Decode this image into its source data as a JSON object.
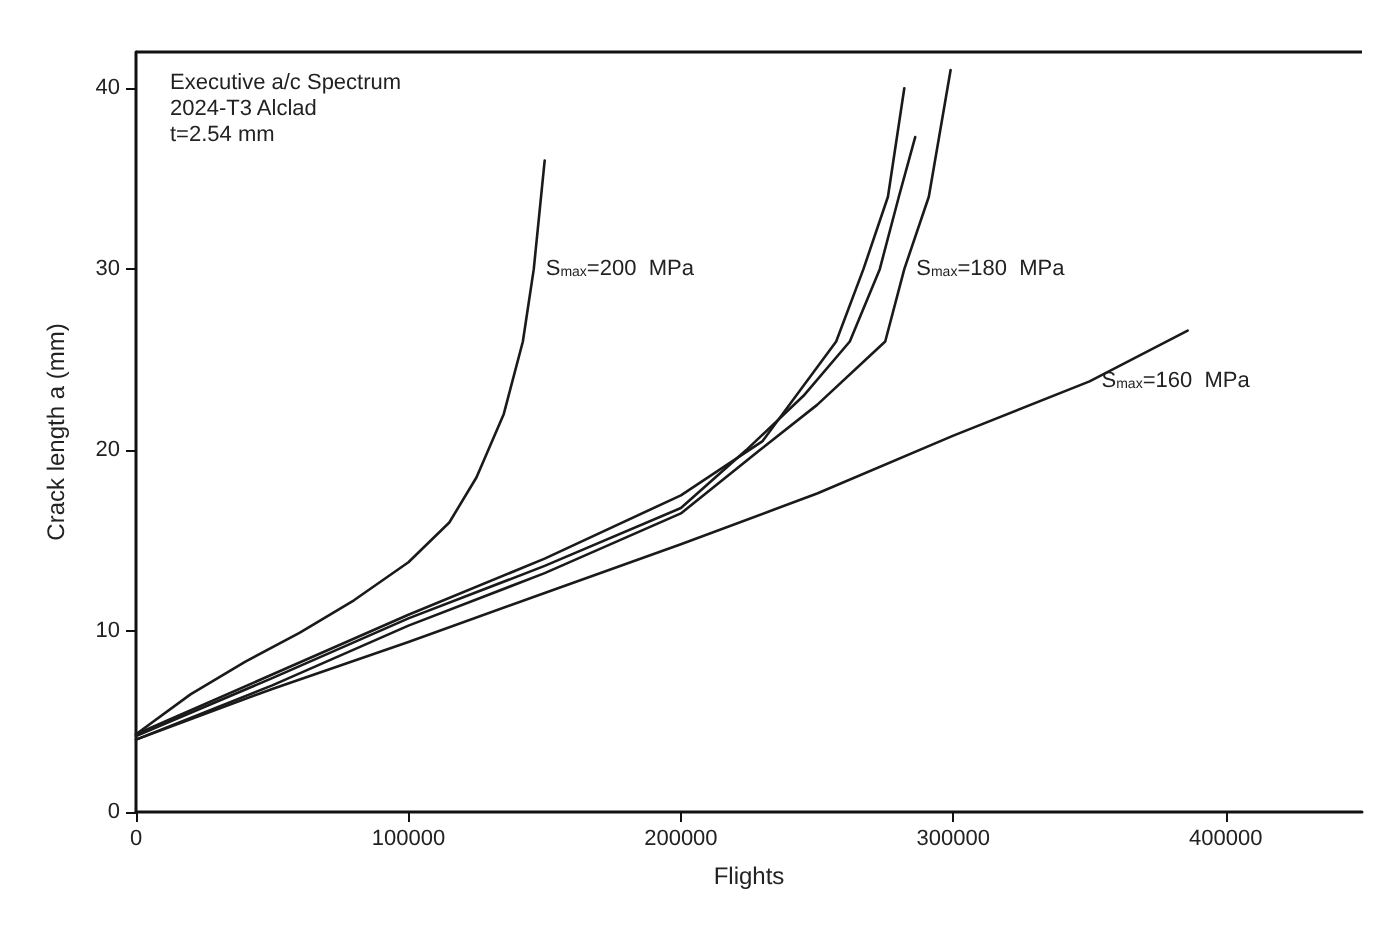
{
  "chart_data": {
    "type": "line",
    "title": "Executive a/c Spectrum\n2024-T3 Alclad\nt=2.54 mm",
    "xlabel": "Flights",
    "ylabel": "Crack length a (mm)",
    "xlim": [
      0,
      450000
    ],
    "xticks": [
      0,
      100000,
      200000,
      300000,
      400000
    ],
    "ylim": [
      0,
      42
    ],
    "yticks": [
      0,
      10,
      20,
      30,
      40
    ],
    "grid": false,
    "marker": "none",
    "line_style": "solid",
    "series": [
      {
        "name": "S$_{max}$=200  MPa",
        "color": "#1a1a1a",
        "x": [
          0,
          20000,
          40000,
          60000,
          80000,
          100000,
          115000,
          125000,
          135000,
          142000,
          146000,
          148000,
          150000
        ],
        "values": [
          4.3,
          6.5,
          8.3,
          9.9,
          11.7,
          13.8,
          16,
          18.5,
          22,
          26,
          30,
          33,
          36
        ]
      },
      {
        "color": "#1a1a1a",
        "x": [
          0,
          50000,
          100000,
          150000,
          200000,
          230000,
          257000,
          267000,
          276000,
          282000
        ],
        "values": [
          4.3,
          7.6,
          10.9,
          14,
          17.5,
          20.5,
          26,
          30,
          34,
          40
        ]
      },
      {
        "color": "#1a1a1a",
        "x": [
          0,
          50000,
          100000,
          150000,
          200000,
          224000,
          245000,
          262000,
          273000,
          280000,
          286000
        ],
        "values": [
          4.2,
          7.4,
          10.7,
          13.6,
          16.8,
          20,
          23,
          26,
          30,
          34,
          37.3
        ]
      },
      {
        "name": "S$_{max}$=180  MPa",
        "color": "#1a1a1a",
        "x": [
          0,
          50000,
          100000,
          150000,
          200000,
          229000,
          250000,
          275000,
          282000,
          291000,
          299000
        ],
        "values": [
          4,
          7,
          10.3,
          13.2,
          16.5,
          20,
          22.5,
          26,
          30,
          34,
          41
        ]
      },
      {
        "name": "S$_{max}$=160  MPa",
        "color": "#1a1a1a",
        "x": [
          0,
          50000,
          100000,
          150000,
          200000,
          250000,
          300000,
          350000,
          386000
        ],
        "values": [
          4,
          6.8,
          9.4,
          12.1,
          14.8,
          17.6,
          20.8,
          23.8,
          26.6
        ]
      }
    ]
  }
}
